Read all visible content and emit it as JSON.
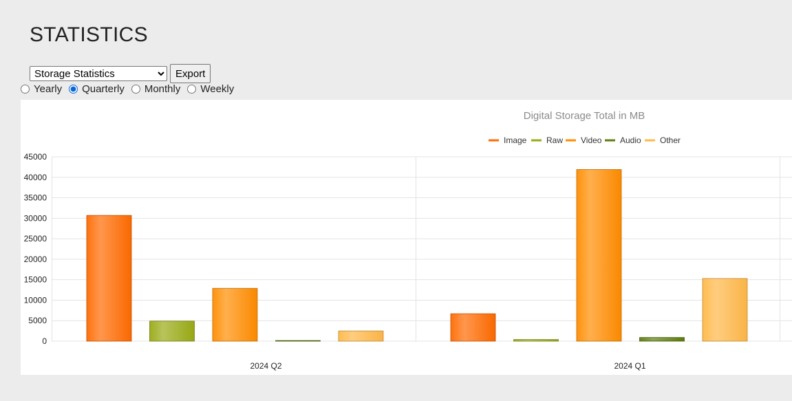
{
  "page": {
    "title": "STATISTICS",
    "select": {
      "selected": "Storage Statistics",
      "options": [
        "Storage Statistics"
      ]
    },
    "export_label": "Export",
    "periods": [
      {
        "label": "Yearly",
        "checked": false
      },
      {
        "label": "Quarterly",
        "checked": true
      },
      {
        "label": "Monthly",
        "checked": false
      },
      {
        "label": "Weekly",
        "checked": false
      }
    ]
  },
  "chart_data": {
    "type": "bar",
    "title": "Digital Storage Total in MB",
    "categories": [
      "2024 Q2",
      "2024 Q1"
    ],
    "series": [
      {
        "name": "Image",
        "values": [
          30700,
          6700
        ],
        "color": "#ff6a00"
      },
      {
        "name": "Raw",
        "values": [
          4900,
          400
        ],
        "color": "#9aaa14"
      },
      {
        "name": "Video",
        "values": [
          12900,
          41900
        ],
        "color": "#ff8c00"
      },
      {
        "name": "Audio",
        "values": [
          150,
          900
        ],
        "color": "#5e7d0e"
      },
      {
        "name": "Other",
        "values": [
          2500,
          15300
        ],
        "color": "#ffb848"
      }
    ],
    "ylim": [
      0,
      45000
    ],
    "yticks": [
      "0",
      "5000",
      "10000",
      "15000",
      "20000",
      "25000",
      "30000",
      "35000",
      "40000",
      "45000"
    ],
    "grid": true,
    "legend": "top-center"
  }
}
